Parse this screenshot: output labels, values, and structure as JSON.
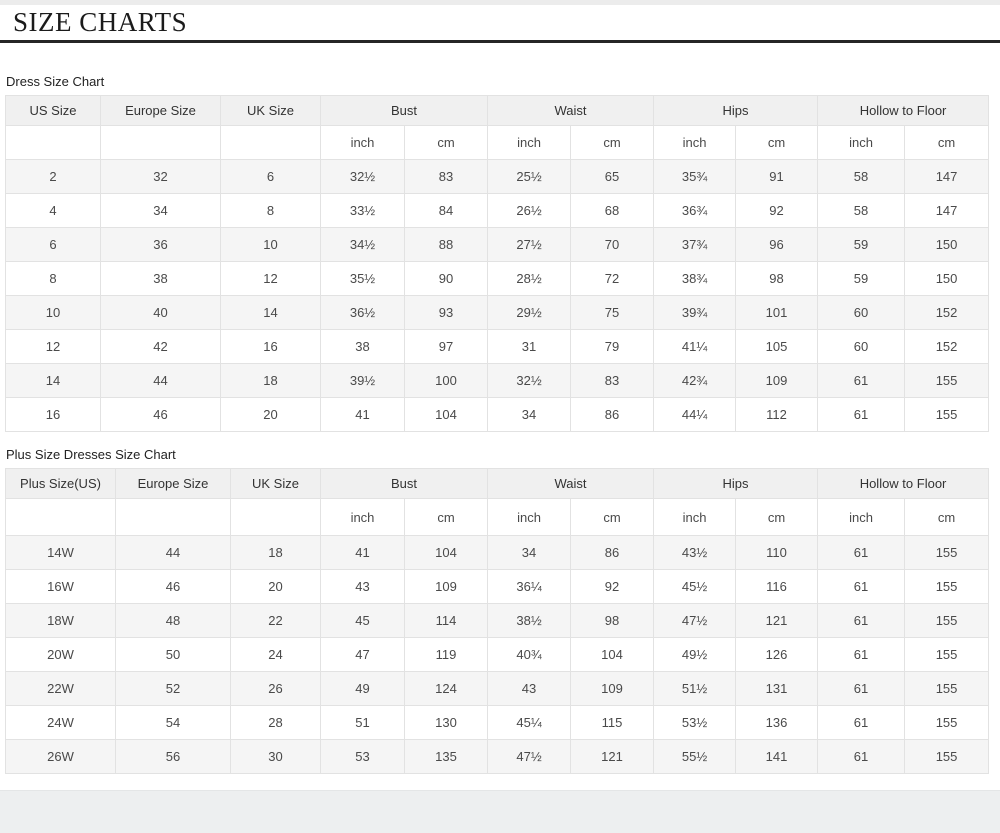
{
  "page": {
    "title": "SIZE CHARTS"
  },
  "colors": {
    "title_rule": "#262626",
    "header_bg": "#f0f0f0",
    "row_alt_bg": "#f5f5f5",
    "border": "#e2e2e2",
    "footer_bg": "#edeff0"
  },
  "tables": [
    {
      "label": "Dress Size Chart",
      "group_headers": [
        "US Size",
        "Europe Size",
        "UK Size",
        "Bust",
        "Waist",
        "Hips",
        "Hollow to Floor"
      ],
      "unit_headers": [
        "inch",
        "cm"
      ],
      "rows": [
        [
          "2",
          "32",
          "6",
          "32½",
          "83",
          "25½",
          "65",
          "35¾",
          "91",
          "58",
          "147"
        ],
        [
          "4",
          "34",
          "8",
          "33½",
          "84",
          "26½",
          "68",
          "36¾",
          "92",
          "58",
          "147"
        ],
        [
          "6",
          "36",
          "10",
          "34½",
          "88",
          "27½",
          "70",
          "37¾",
          "96",
          "59",
          "150"
        ],
        [
          "8",
          "38",
          "12",
          "35½",
          "90",
          "28½",
          "72",
          "38¾",
          "98",
          "59",
          "150"
        ],
        [
          "10",
          "40",
          "14",
          "36½",
          "93",
          "29½",
          "75",
          "39¾",
          "101",
          "60",
          "152"
        ],
        [
          "12",
          "42",
          "16",
          "38",
          "97",
          "31",
          "79",
          "41¼",
          "105",
          "60",
          "152"
        ],
        [
          "14",
          "44",
          "18",
          "39½",
          "100",
          "32½",
          "83",
          "42¾",
          "109",
          "61",
          "155"
        ],
        [
          "16",
          "46",
          "20",
          "41",
          "104",
          "34",
          "86",
          "44¼",
          "112",
          "61",
          "155"
        ]
      ]
    },
    {
      "label": "Plus Size Dresses Size Chart",
      "group_headers": [
        "Plus Size(US)",
        "Europe Size",
        "UK Size",
        "Bust",
        "Waist",
        "Hips",
        "Hollow to Floor"
      ],
      "unit_headers": [
        "inch",
        "cm"
      ],
      "rows": [
        [
          "14W",
          "44",
          "18",
          "41",
          "104",
          "34",
          "86",
          "43½",
          "110",
          "61",
          "155"
        ],
        [
          "16W",
          "46",
          "20",
          "43",
          "109",
          "36¼",
          "92",
          "45½",
          "116",
          "61",
          "155"
        ],
        [
          "18W",
          "48",
          "22",
          "45",
          "114",
          "38½",
          "98",
          "47½",
          "121",
          "61",
          "155"
        ],
        [
          "20W",
          "50",
          "24",
          "47",
          "119",
          "40¾",
          "104",
          "49½",
          "126",
          "61",
          "155"
        ],
        [
          "22W",
          "52",
          "26",
          "49",
          "124",
          "43",
          "109",
          "51½",
          "131",
          "61",
          "155"
        ],
        [
          "24W",
          "54",
          "28",
          "51",
          "130",
          "45¼",
          "115",
          "53½",
          "136",
          "61",
          "155"
        ],
        [
          "26W",
          "56",
          "30",
          "53",
          "135",
          "47½",
          "121",
          "55½",
          "141",
          "61",
          "155"
        ]
      ]
    }
  ]
}
